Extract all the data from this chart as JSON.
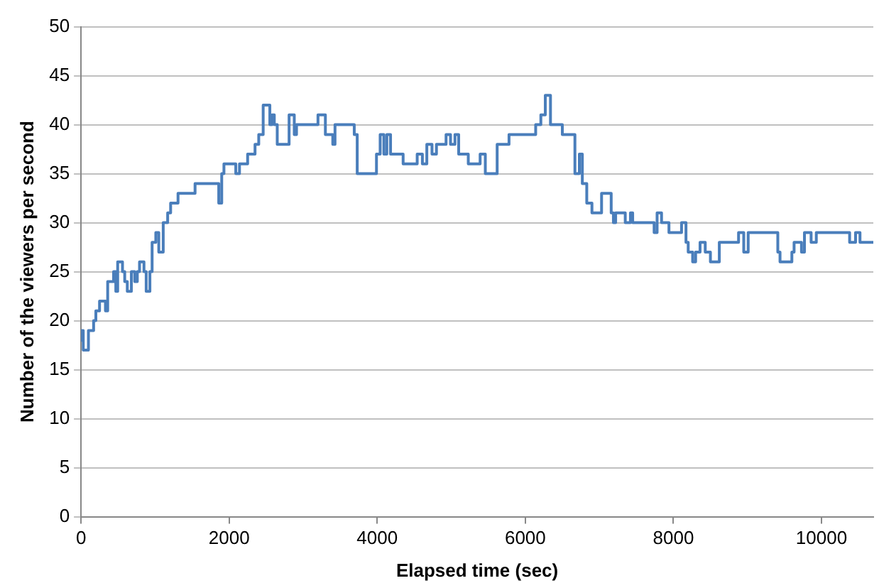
{
  "chart_data": {
    "type": "step",
    "xlabel": "Elapsed time (sec)",
    "ylabel": "Number of the viewers per second",
    "xlim": [
      0,
      10700
    ],
    "ylim": [
      0,
      50
    ],
    "xticks": [
      0,
      2000,
      4000,
      6000,
      8000,
      10000
    ],
    "yticks": [
      0,
      5,
      10,
      15,
      20,
      25,
      30,
      35,
      40,
      45,
      50
    ],
    "grid": "y",
    "legend": false,
    "marker": "none",
    "line_style": "solid",
    "series": [
      {
        "color": "#4a7ebb",
        "x": [
          0,
          10,
          30,
          100,
          170,
          200,
          250,
          330,
          360,
          440,
          470,
          495,
          560,
          590,
          625,
          680,
          725,
          760,
          790,
          850,
          880,
          930,
          960,
          1010,
          1050,
          1110,
          1170,
          1210,
          1310,
          1340,
          1540,
          1860,
          1900,
          1930,
          2090,
          2140,
          2250,
          2350,
          2400,
          2460,
          2550,
          2580,
          2610,
          2650,
          2710,
          2810,
          2880,
          2910,
          3040,
          3200,
          3300,
          3400,
          3430,
          3690,
          3730,
          3990,
          4040,
          4090,
          4130,
          4180,
          4230,
          4350,
          4540,
          4610,
          4670,
          4740,
          4800,
          4930,
          4990,
          5050,
          5100,
          5170,
          5230,
          5390,
          5460,
          5620,
          5780,
          6140,
          6210,
          6270,
          6340,
          6500,
          6670,
          6730,
          6770,
          6830,
          6900,
          7030,
          7160,
          7190,
          7220,
          7350,
          7420,
          7450,
          7740,
          7780,
          7840,
          7940,
          8110,
          8170,
          8200,
          8260,
          8300,
          8360,
          8430,
          8500,
          8620,
          8880,
          8950,
          9010,
          9410,
          9440,
          9600,
          9630,
          9730,
          9770,
          9860,
          9930,
          10380,
          10460,
          10520,
          10650,
          10700
        ],
        "values": [
          19,
          18,
          19,
          17,
          19,
          20,
          21,
          22,
          21,
          24,
          25,
          23,
          26,
          25,
          24,
          23,
          25,
          24,
          25,
          26,
          25,
          23,
          25,
          28,
          29,
          27,
          30,
          31,
          32,
          33,
          33,
          34,
          32,
          35,
          36,
          35,
          36,
          37,
          38,
          39,
          42,
          40,
          41,
          40,
          38,
          38,
          41,
          39,
          40,
          40,
          41,
          39,
          38,
          40,
          39,
          35,
          37,
          39,
          37,
          39,
          37,
          37,
          36,
          37,
          36,
          38,
          37,
          38,
          39,
          38,
          39,
          37,
          37,
          36,
          37,
          35,
          38,
          39,
          40,
          41,
          43,
          40,
          39,
          35,
          37,
          34,
          32,
          31,
          33,
          31,
          30,
          31,
          30,
          31,
          30,
          29,
          31,
          30,
          29,
          30,
          28,
          27,
          26,
          27,
          28,
          27,
          26,
          28,
          29,
          27,
          29,
          27,
          26,
          27,
          28,
          27,
          29,
          28,
          29,
          28,
          29,
          28,
          28
        ]
      }
    ]
  }
}
